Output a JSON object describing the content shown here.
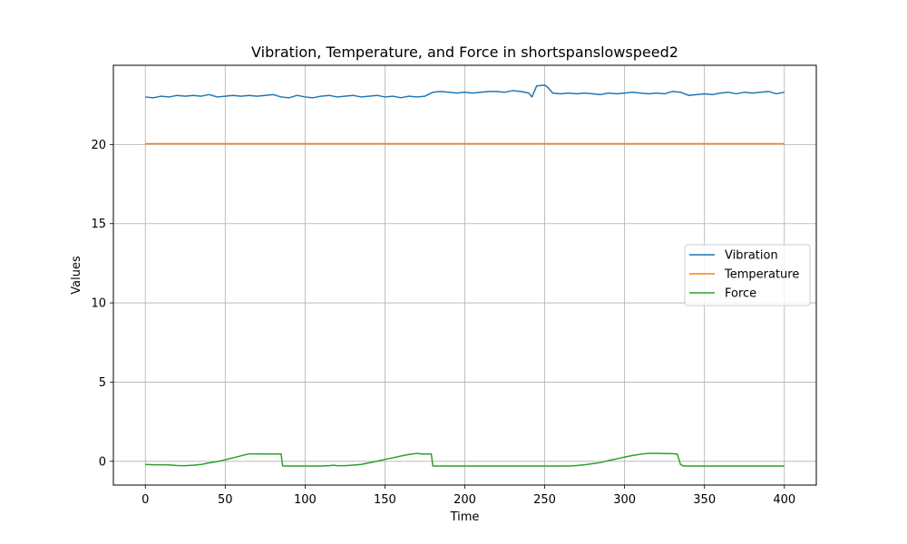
{
  "chart_data": {
    "type": "line",
    "title": "Vibration, Temperature, and Force in shortspanslowspeed2",
    "xlabel": "Time",
    "ylabel": "Values",
    "xlim": [
      -20,
      420
    ],
    "ylim": [
      -1.5,
      25
    ],
    "xticks": [
      0,
      50,
      100,
      150,
      200,
      250,
      300,
      350,
      400
    ],
    "yticks": [
      0,
      5,
      10,
      15,
      20
    ],
    "grid": true,
    "legend_position": "center-right",
    "series": [
      {
        "name": "Vibration",
        "color": "#1f77b4",
        "x": [
          0,
          5,
          10,
          15,
          20,
          25,
          30,
          35,
          40,
          45,
          50,
          55,
          60,
          65,
          70,
          75,
          80,
          85,
          90,
          95,
          100,
          105,
          110,
          115,
          120,
          125,
          130,
          135,
          140,
          145,
          150,
          155,
          160,
          165,
          170,
          175,
          180,
          185,
          190,
          195,
          200,
          205,
          210,
          215,
          220,
          225,
          230,
          235,
          240,
          242,
          245,
          250,
          252,
          255,
          260,
          265,
          270,
          275,
          280,
          285,
          290,
          295,
          300,
          305,
          310,
          315,
          320,
          325,
          330,
          335,
          340,
          345,
          350,
          355,
          360,
          365,
          370,
          375,
          380,
          385,
          390,
          395,
          400
        ],
        "values": [
          23.0,
          22.95,
          23.05,
          23.0,
          23.1,
          23.05,
          23.1,
          23.05,
          23.15,
          23.0,
          23.05,
          23.1,
          23.05,
          23.1,
          23.05,
          23.1,
          23.15,
          23.0,
          22.95,
          23.1,
          23.0,
          22.95,
          23.05,
          23.1,
          23.0,
          23.05,
          23.1,
          23.0,
          23.05,
          23.1,
          23.0,
          23.05,
          22.95,
          23.05,
          23.0,
          23.05,
          23.3,
          23.35,
          23.3,
          23.25,
          23.3,
          23.25,
          23.3,
          23.35,
          23.35,
          23.3,
          23.4,
          23.35,
          23.25,
          23.0,
          23.7,
          23.75,
          23.6,
          23.25,
          23.2,
          23.25,
          23.2,
          23.25,
          23.2,
          23.15,
          23.25,
          23.2,
          23.25,
          23.3,
          23.25,
          23.2,
          23.25,
          23.2,
          23.35,
          23.3,
          23.1,
          23.15,
          23.2,
          23.15,
          23.25,
          23.3,
          23.2,
          23.3,
          23.25,
          23.3,
          23.35,
          23.2,
          23.3
        ]
      },
      {
        "name": "Temperature",
        "color": "#ff7f0e",
        "x": [
          0,
          400
        ],
        "values": [
          20.05,
          20.05
        ]
      },
      {
        "name": "Force",
        "color": "#2ca02c",
        "x": [
          0,
          5,
          10,
          15,
          20,
          25,
          30,
          35,
          40,
          45,
          50,
          55,
          60,
          65,
          70,
          75,
          80,
          85,
          86,
          90,
          95,
          100,
          105,
          110,
          115,
          118,
          120,
          125,
          130,
          135,
          140,
          145,
          150,
          155,
          160,
          165,
          170,
          173,
          176,
          179,
          180,
          185,
          190,
          200,
          210,
          220,
          230,
          240,
          250,
          260,
          265,
          270,
          275,
          280,
          285,
          290,
          295,
          300,
          305,
          310,
          315,
          320,
          325,
          330,
          333,
          335,
          337,
          340,
          350,
          360,
          370,
          380,
          390,
          400
        ],
        "values": [
          -0.2,
          -0.22,
          -0.22,
          -0.23,
          -0.27,
          -0.28,
          -0.25,
          -0.2,
          -0.1,
          -0.02,
          0.1,
          0.22,
          0.35,
          0.47,
          0.47,
          0.46,
          0.46,
          0.46,
          -0.3,
          -0.3,
          -0.3,
          -0.3,
          -0.3,
          -0.3,
          -0.28,
          -0.25,
          -0.28,
          -0.28,
          -0.24,
          -0.2,
          -0.1,
          0.0,
          0.12,
          0.22,
          0.33,
          0.43,
          0.5,
          0.46,
          0.46,
          0.46,
          -0.3,
          -0.3,
          -0.3,
          -0.3,
          -0.3,
          -0.3,
          -0.3,
          -0.3,
          -0.3,
          -0.3,
          -0.3,
          -0.27,
          -0.22,
          -0.15,
          -0.08,
          0.05,
          0.15,
          0.27,
          0.37,
          0.45,
          0.5,
          0.5,
          0.49,
          0.48,
          0.45,
          -0.2,
          -0.3,
          -0.3,
          -0.3,
          -0.3,
          -0.3,
          -0.3,
          -0.3,
          -0.3
        ]
      }
    ]
  }
}
